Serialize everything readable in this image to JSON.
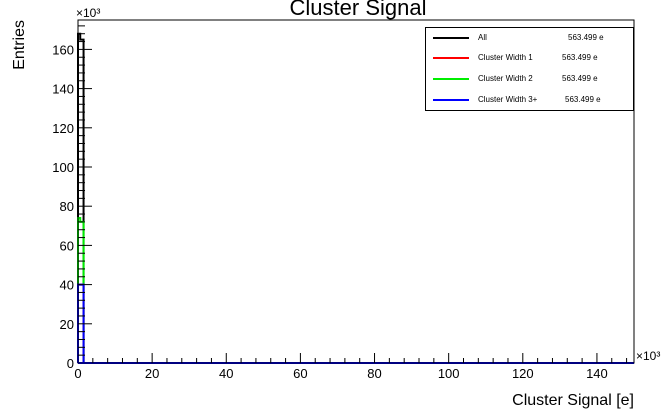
{
  "chart_data": {
    "type": "histogram",
    "title": "Cluster Signal",
    "xlabel": "Cluster Signal [e]",
    "ylabel": "Entries",
    "x_multiplier": "×10³",
    "y_multiplier": "×10³",
    "xlim": [
      0,
      150
    ],
    "ylim": [
      0,
      175
    ],
    "x_ticks": [
      "0",
      "20",
      "40",
      "60",
      "80",
      "100",
      "120",
      "140"
    ],
    "x_tick_values": [
      0,
      20,
      40,
      60,
      80,
      100,
      120,
      140
    ],
    "y_ticks": [
      "0",
      "20",
      "40",
      "60",
      "80",
      "100",
      "120",
      "140",
      "160"
    ],
    "y_tick_values": [
      0,
      20,
      40,
      60,
      80,
      100,
      120,
      140,
      160
    ],
    "grid": false,
    "legend_position": "top-right",
    "series": [
      {
        "name": "All",
        "legend_value": "563.499 e",
        "color": "#000000",
        "bins": [
          {
            "x0": 0,
            "x1": 0.6,
            "y": 168
          },
          {
            "x0": 0.6,
            "x1": 1.5,
            "y": 165
          }
        ]
      },
      {
        "name": "Cluster Width 1",
        "legend_value": "563.499 e",
        "color": "#ff0000",
        "bins": [
          {
            "x0": 0,
            "x1": 0.6,
            "y": 40
          },
          {
            "x0": 0.6,
            "x1": 1.5,
            "y": 40
          }
        ]
      },
      {
        "name": "Cluster Width 2",
        "legend_value": "563.499 e",
        "color": "#00ee00",
        "bins": [
          {
            "x0": 0,
            "x1": 0.6,
            "y": 74
          },
          {
            "x0": 0.6,
            "x1": 1.5,
            "y": 72
          }
        ]
      },
      {
        "name": "Cluster Width 3+",
        "legend_value": "563.499 e",
        "color": "#0000ff",
        "bins": [
          {
            "x0": 0,
            "x1": 0.6,
            "y": 40
          },
          {
            "x0": 0.6,
            "x1": 1.5,
            "y": 40
          }
        ]
      }
    ]
  }
}
